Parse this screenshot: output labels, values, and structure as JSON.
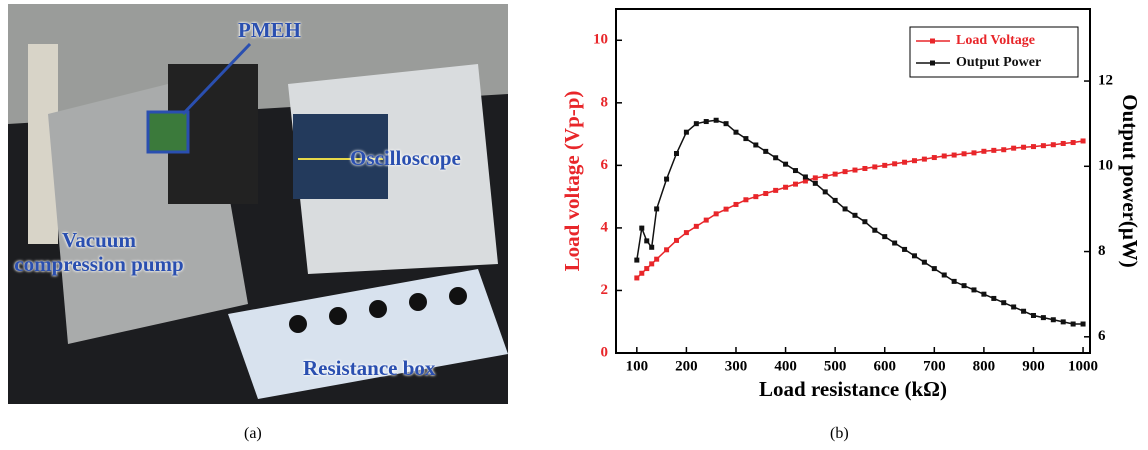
{
  "photo": {
    "labels": [
      "PMEH",
      "Oscilloscope",
      "Vacuum compression pump",
      "Resistance box"
    ],
    "caption": "(a)"
  },
  "chart_data": {
    "type": "line",
    "caption": "(b)",
    "x_label": "Load resistance (kΩ)",
    "y_label": "Load voltage (Vp-p)",
    "y2_label": "Output power(μW)",
    "x": [
      100,
      110,
      120,
      130,
      140,
      160,
      180,
      200,
      220,
      240,
      260,
      280,
      300,
      320,
      340,
      360,
      380,
      400,
      420,
      440,
      460,
      480,
      500,
      520,
      540,
      560,
      580,
      600,
      620,
      640,
      660,
      680,
      700,
      720,
      740,
      760,
      780,
      800,
      820,
      840,
      860,
      880,
      900,
      920,
      940,
      960,
      980,
      1000
    ],
    "series": [
      {
        "name": "Load Voltage",
        "color": "#e8262a",
        "values": [
          2.4,
          2.55,
          2.7,
          2.85,
          3.0,
          3.3,
          3.6,
          3.85,
          4.05,
          4.25,
          4.45,
          4.6,
          4.75,
          4.9,
          5.0,
          5.1,
          5.2,
          5.3,
          5.4,
          5.5,
          5.6,
          5.65,
          5.72,
          5.8,
          5.85,
          5.9,
          5.95,
          6.0,
          6.05,
          6.1,
          6.15,
          6.2,
          6.25,
          6.3,
          6.33,
          6.37,
          6.4,
          6.45,
          6.48,
          6.5,
          6.55,
          6.58,
          6.6,
          6.63,
          6.66,
          6.7,
          6.73,
          6.78
        ]
      },
      {
        "name": "Output Power",
        "color": "#111111",
        "axis": "y2",
        "values": [
          7.8,
          8.55,
          8.25,
          8.1,
          9.0,
          9.7,
          10.3,
          10.8,
          11.0,
          11.05,
          11.08,
          11.0,
          10.8,
          10.65,
          10.5,
          10.35,
          10.2,
          10.05,
          9.9,
          9.75,
          9.6,
          9.4,
          9.2,
          9.0,
          8.85,
          8.7,
          8.5,
          8.35,
          8.2,
          8.05,
          7.9,
          7.75,
          7.6,
          7.45,
          7.3,
          7.2,
          7.1,
          7.0,
          6.9,
          6.8,
          6.7,
          6.6,
          6.5,
          6.45,
          6.4,
          6.35,
          6.3,
          6.3
        ]
      }
    ],
    "xlim": [
      58,
      1014
    ],
    "xticks": [
      100,
      200,
      300,
      400,
      500,
      600,
      700,
      800,
      900,
      1000
    ],
    "ylim": [
      0,
      11
    ],
    "yticks": [
      0,
      2,
      4,
      6,
      8,
      10
    ],
    "y2lim": [
      5.62,
      13.69
    ],
    "y2ticks": [
      6,
      8,
      10,
      12
    ],
    "legend": "upper right"
  }
}
